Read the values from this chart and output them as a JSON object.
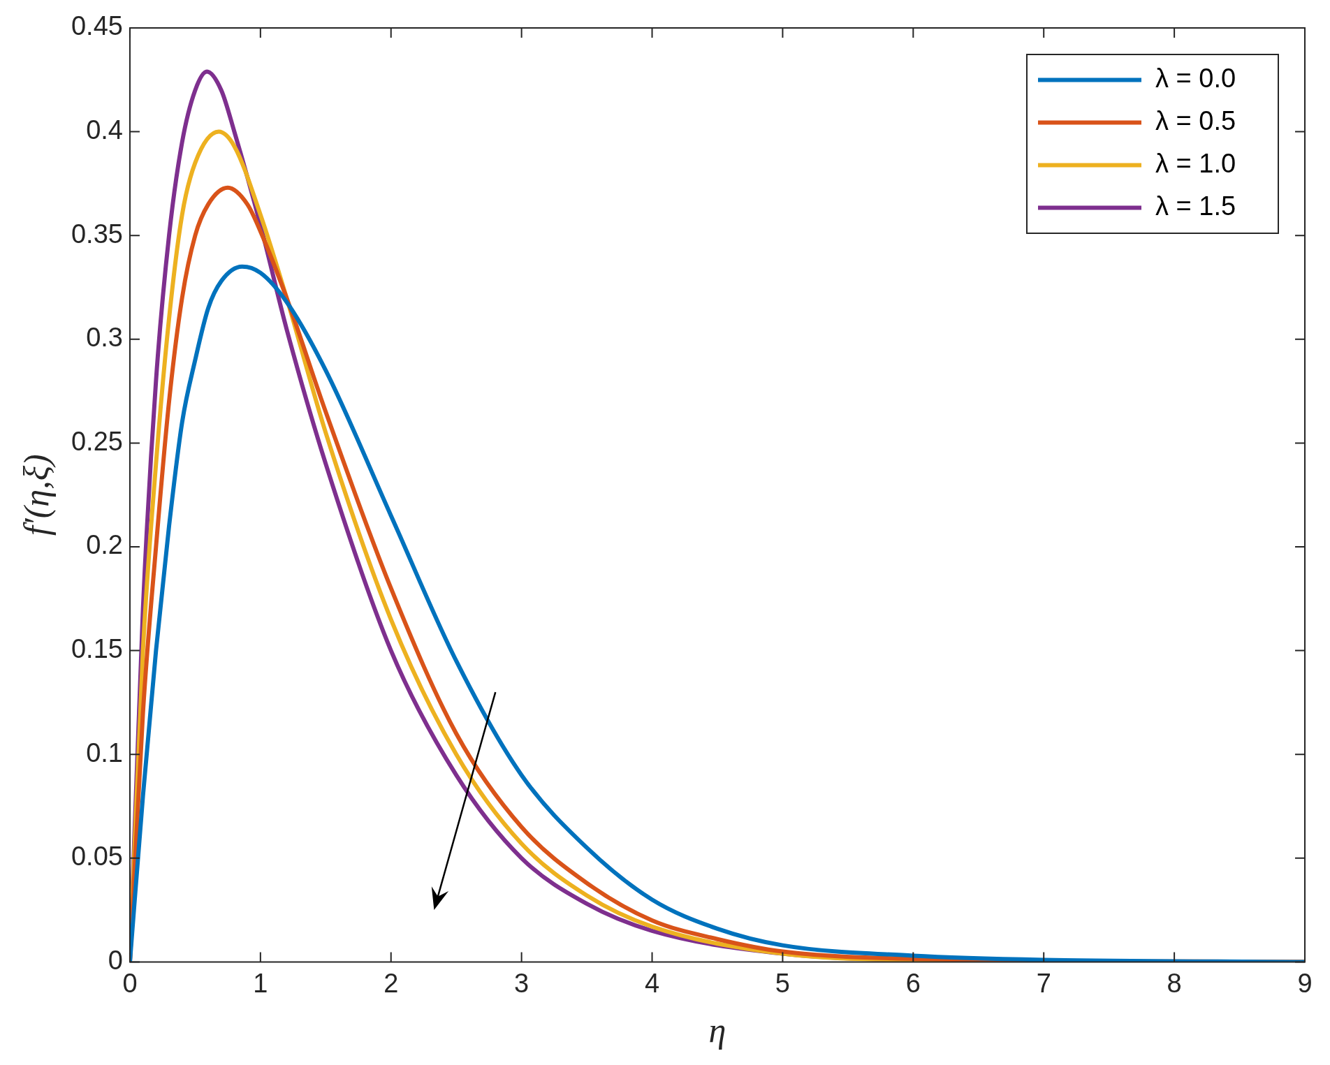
{
  "chart_data": {
    "type": "line",
    "xlabel": "η",
    "ylabel": "f′(η,ξ)",
    "xlim": [
      0,
      9
    ],
    "ylim": [
      0,
      0.45
    ],
    "xticks": [
      0,
      1,
      2,
      3,
      4,
      5,
      6,
      7,
      8,
      9
    ],
    "yticks": [
      0,
      0.05,
      0.1,
      0.15,
      0.2,
      0.25,
      0.3,
      0.35,
      0.4,
      0.45
    ],
    "grid": false,
    "legend": "top right",
    "marker": "none",
    "line_style": "solid",
    "series": [
      {
        "name": "λ = 0.0",
        "color": "#0072bd",
        "x": [
          0,
          0.1,
          0.2,
          0.3,
          0.4,
          0.5,
          0.6,
          0.7,
          0.86,
          1,
          1.2,
          1.5,
          2,
          2.5,
          3,
          3.5,
          4,
          4.5,
          5,
          6,
          7,
          9
        ],
        "values": [
          0,
          0.08,
          0.15,
          0.21,
          0.26,
          0.29,
          0.315,
          0.328,
          0.335,
          0.332,
          0.318,
          0.285,
          0.215,
          0.145,
          0.09,
          0.055,
          0.03,
          0.016,
          0.008,
          0.003,
          0.001,
          0
        ]
      },
      {
        "name": "λ = 0.5",
        "color": "#d95319",
        "x": [
          0,
          0.1,
          0.2,
          0.3,
          0.4,
          0.5,
          0.6,
          0.75,
          0.9,
          1,
          1.2,
          1.5,
          2,
          2.5,
          3,
          3.5,
          4,
          4.5,
          5,
          6,
          9
        ],
        "values": [
          0,
          0.12,
          0.2,
          0.27,
          0.32,
          0.35,
          0.365,
          0.373,
          0.365,
          0.352,
          0.32,
          0.265,
          0.18,
          0.11,
          0.065,
          0.038,
          0.02,
          0.011,
          0.005,
          0.0015,
          0
        ]
      },
      {
        "name": "λ = 1.0",
        "color": "#edb120",
        "x": [
          0,
          0.1,
          0.2,
          0.3,
          0.4,
          0.5,
          0.68,
          0.8,
          1,
          1.2,
          1.5,
          2,
          2.5,
          3,
          3.5,
          4,
          5,
          6,
          9
        ],
        "values": [
          0,
          0.15,
          0.24,
          0.31,
          0.36,
          0.385,
          0.4,
          0.393,
          0.36,
          0.32,
          0.255,
          0.165,
          0.1,
          0.057,
          0.032,
          0.017,
          0.004,
          0.001,
          0
        ]
      },
      {
        "name": "λ = 1.5",
        "color": "#7e2f8e",
        "x": [
          0,
          0.1,
          0.2,
          0.3,
          0.4,
          0.5,
          0.59,
          0.7,
          0.8,
          1,
          1.2,
          1.5,
          2,
          2.5,
          3,
          3.5,
          4,
          5,
          6,
          9
        ],
        "values": [
          0,
          0.17,
          0.28,
          0.35,
          0.395,
          0.42,
          0.429,
          0.42,
          0.4,
          0.355,
          0.305,
          0.24,
          0.15,
          0.09,
          0.05,
          0.028,
          0.015,
          0.004,
          0.001,
          0
        ]
      }
    ]
  }
}
